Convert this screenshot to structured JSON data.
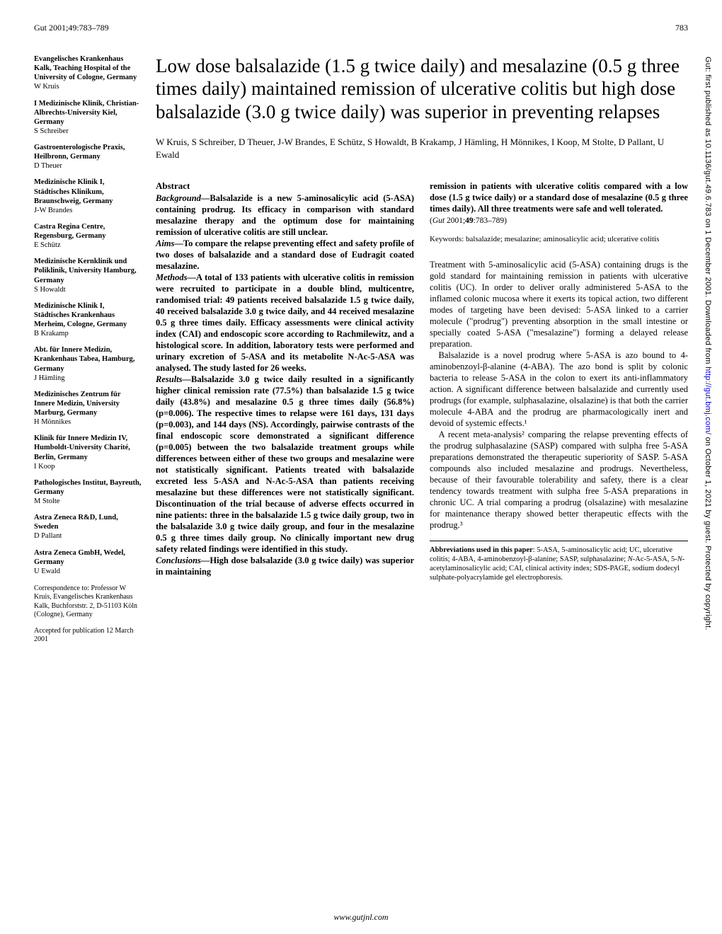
{
  "header": {
    "journal_ref": "Gut 2001;49:783–789",
    "page_num": "783"
  },
  "affiliations": [
    {
      "place": "Evangelisches Krankenhaus Kalk, Teaching Hospital of the University of Cologne, Germany",
      "name": "W Kruis"
    },
    {
      "place": "I Medizinische Klinik, Christian-Albrechts-University Kiel, Germany",
      "name": "S Schreiber"
    },
    {
      "place": "Gastroenterologische Praxis, Heilbronn, Germany",
      "name": "D Theuer"
    },
    {
      "place": "Medizinische Klinik I, Städtisches Klinikum, Braunschweig, Germany",
      "name": "J-W Brandes"
    },
    {
      "place": "Castra Regina Centre, Regensburg, Germany",
      "name": "E Schütz"
    },
    {
      "place": "Medizinische Kernklinik und Poliklinik, University Hamburg, Germany",
      "name": "S Howaldt"
    },
    {
      "place": "Medizinische Klinik I, Städtisches Krankenhaus Merheim, Cologne, Germany",
      "name": "B Krakamp"
    },
    {
      "place": "Abt. für Innere Medizin, Krankenhaus Tabea, Hamburg, Germany",
      "name": "J Hämling"
    },
    {
      "place": "Medizinisches Zentrum für Innere Medizin, University Marburg, Germany",
      "name": "H Mönnikes"
    },
    {
      "place": "Klinik für Innere Medizin IV, Humboldt-University Charité, Berlin, Germany",
      "name": "I Koop"
    },
    {
      "place": "Pathologisches Institut, Bayreuth, Germany",
      "name": "M Stolte"
    },
    {
      "place": "Astra Zeneca R&D, Lund, Sweden",
      "name": "D Pallant"
    },
    {
      "place": "Astra Zeneca GmbH, Wedel, Germany",
      "name": "U Ewald"
    }
  ],
  "correspondence": "Correspondence to: Professor W Kruis, Evangelisches Krankenhaus Kalk, Buchforststr. 2, D-51103 Köln (Cologne), Germany",
  "accepted": "Accepted for publication 12 March 2001",
  "title": "Low dose balsalazide (1.5 g twice daily) and mesalazine (0.5 g three times daily) maintained remission of ulcerative colitis but high dose balsalazide (3.0 g twice daily) was superior in preventing relapses",
  "authors": "W Kruis, S Schreiber, D Theuer, J-W Brandes, E Schütz, S Howaldt, B Krakamp, J Hämling, H Mönnikes, I Koop, M Stolte, D Pallant, U Ewald",
  "abstract": {
    "heading": "Abstract",
    "background_label": "Background—",
    "background": "Balsalazide is a new 5-aminosalicylic acid (5-ASA) containing prodrug. Its efficacy in comparison with standard mesalazine therapy and the optimum dose for maintaining remission of ulcerative colitis are still unclear.",
    "aims_label": "Aims—",
    "aims": "To compare the relapse preventing effect and safety profile of two doses of balsalazide and a standard dose of Eudragit coated mesalazine.",
    "methods_label": "Methods—",
    "methods": "A total of 133 patients with ulcerative colitis in remission were recruited to participate in a double blind, multicentre, randomised trial: 49 patients received balsalazide 1.5 g twice daily, 40 received balsalazide 3.0 g twice daily, and 44 received mesalazine 0.5 g three times daily. Efficacy assessments were clinical activity index (CAI) and endoscopic score according to Rachmilewitz, and a histological score. In addition, laboratory tests were performed and urinary excretion of 5-ASA and its metabolite N-Ac-5-ASA was analysed. The study lasted for 26 weeks.",
    "results_label": "Results—",
    "results": "Balsalazide 3.0 g twice daily resulted in a significantly higher clinical remission rate (77.5%) than balsalazide 1.5 g twice daily (43.8%) and mesalazine 0.5 g three times daily (56.8%) (p=0.006). The respective times to relapse were 161 days, 131 days (p=0.003), and 144 days (NS). Accordingly, pairwise contrasts of the final endoscopic score demonstrated a significant difference (p=0.005) between the two balsalazide treatment groups while differences between either of these two groups and mesalazine were not statistically significant. Patients treated with balsalazide excreted less 5-ASA and N-Ac-5-ASA than patients receiving mesalazine but these differences were not statistically significant. Discontinuation of the trial because of adverse effects occurred in nine patients: three in the balsalazide 1.5 g twice daily group, two in the balsalazide 3.0 g twice daily group, and four in the mesalazine 0.5 g three times daily group. No clinically important new drug safety related findings were identified in this study.",
    "conclusions_label": "Conclusions—",
    "conclusions": "High dose balsalazide (3.0 g twice daily) was superior in maintaining",
    "conclusions_cont": "remission in patients with ulcerative colitis compared with a low dose (1.5 g twice daily) or a standard dose of mesalazine (0.5 g three times daily). All three treatments were safe and well tolerated."
  },
  "citation": "(Gut 2001;49:783–789)",
  "keywords": "Keywords: balsalazide; mesalazine; aminosalicylic acid; ulcerative colitis",
  "body": {
    "p1": "Treatment with 5-aminosalicylic acid (5-ASA) containing drugs is the gold standard for maintaining remission in patients with ulcerative colitis (UC). In order to deliver orally administered 5-ASA to the inflamed colonic mucosa where it exerts its topical action, two different modes of targeting have been devised: 5-ASA linked to a carrier molecule (\"prodrug\") preventing absorption in the small intestine or specially coated 5-ASA (\"mesalazine\") forming a delayed release preparation.",
    "p2": "Balsalazide is a novel prodrug where 5-ASA is azo bound to 4-aminobenzoyl-β-alanine (4-ABA). The azo bond is split by colonic bacteria to release 5-ASA in the colon to exert its anti-inflammatory action. A significant difference between balsalazide and currently used prodrugs (for example, sulphasalazine, olsalazine) is that both the carrier molecule 4-ABA and the prodrug are pharmacologically inert and devoid of systemic effects.¹",
    "p3": "A recent meta-analysis² comparing the relapse preventing effects of the prodrug sulphasalazine (SASP) compared with sulpha free 5-ASA preparations demonstrated the therapeutic superiority of SASP. 5-ASA compounds also included mesalazine and prodrugs. Nevertheless, because of their favourable tolerability and safety, there is a clear tendency towards treatment with sulpha free 5-ASA preparations in chronic UC. A trial comparing a prodrug (olsalazine) with mesalazine for maintenance therapy showed better therapeutic effects with the prodrug.³"
  },
  "abbreviations": "Abbreviations used in this paper: 5-ASA, 5-aminosalicylic acid; UC, ulcerative colitis; 4-ABA, 4-aminobenzoyl-β-alanine; SASP, sulphasalazine; N-Ac-5-ASA, 5-N-acetylaminosalicylic acid; CAI, clinical activity index; SDS-PAGE, sodium dodecyl sulphate-polyacrylamide gel electrophoresis.",
  "side_text": {
    "prefix": "Gut: first published as 10.1136/gut.49.6.783 on 1 December 2001. Downloaded from ",
    "link": "http://gut.bmj.com/",
    "suffix": " on October 1, 2021 by guest. Protected by copyright."
  },
  "footer_url": "www.gutjnl.com"
}
